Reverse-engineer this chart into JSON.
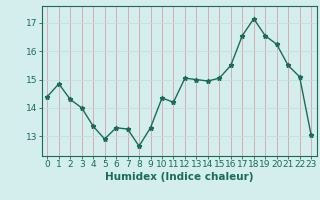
{
  "x": [
    0,
    1,
    2,
    3,
    4,
    5,
    6,
    7,
    8,
    9,
    10,
    11,
    12,
    13,
    14,
    15,
    16,
    17,
    18,
    19,
    20,
    21,
    22,
    23
  ],
  "y": [
    14.4,
    14.85,
    14.3,
    14.0,
    13.35,
    12.9,
    13.3,
    13.25,
    12.65,
    13.3,
    14.35,
    14.2,
    15.05,
    15.0,
    14.95,
    15.05,
    15.5,
    16.55,
    17.15,
    16.55,
    16.25,
    15.5,
    15.1,
    13.05
  ],
  "line_color": "#1a6b5a",
  "marker": "*",
  "marker_size": 3.5,
  "bg_color": "#d4eeee",
  "grid_color_v": "#d9a0a8",
  "grid_color_h": "#c8dede",
  "xlabel": "Humidex (Indice chaleur)",
  "yticks": [
    13,
    14,
    15,
    16,
    17
  ],
  "xticks": [
    0,
    1,
    2,
    3,
    4,
    5,
    6,
    7,
    8,
    9,
    10,
    11,
    12,
    13,
    14,
    15,
    16,
    17,
    18,
    19,
    20,
    21,
    22,
    23
  ],
  "ylim": [
    12.3,
    17.6
  ],
  "xlim": [
    -0.5,
    23.5
  ],
  "xlabel_fontsize": 7.5,
  "tick_fontsize": 6.5,
  "line_width": 1.0
}
